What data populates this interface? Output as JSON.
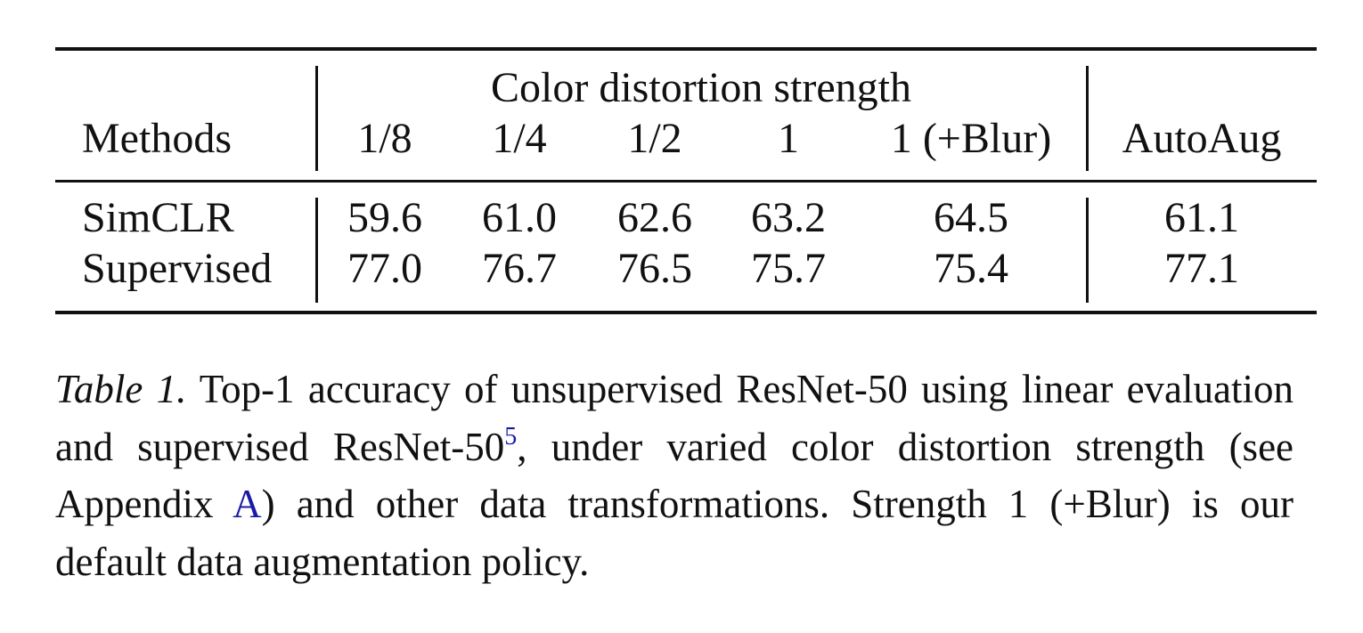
{
  "table": {
    "group_header": "Color distortion strength",
    "row_header": "Methods",
    "columns": [
      "1/8",
      "1/4",
      "1/2",
      "1",
      "1 (+Blur)",
      "AutoAug"
    ],
    "rows": [
      {
        "method": "SimCLR",
        "values": [
          "59.6",
          "61.0",
          "62.6",
          "63.2",
          "64.5",
          "61.1"
        ]
      },
      {
        "method": "Supervised",
        "values": [
          "77.0",
          "76.7",
          "76.5",
          "75.7",
          "75.4",
          "77.1"
        ]
      }
    ]
  },
  "caption": {
    "label": "Table 1.",
    "text_1": " Top-1 accuracy of unsupervised ResNet-50 using linear evaluation and supervised ResNet-50",
    "footnote_mark": "5",
    "text_2": ", under varied color distortion strength (see Appendix ",
    "appendix_ref": "A",
    "text_3": ") and other data transformations. Strength 1 (+Blur) is our default data augmentation policy."
  }
}
